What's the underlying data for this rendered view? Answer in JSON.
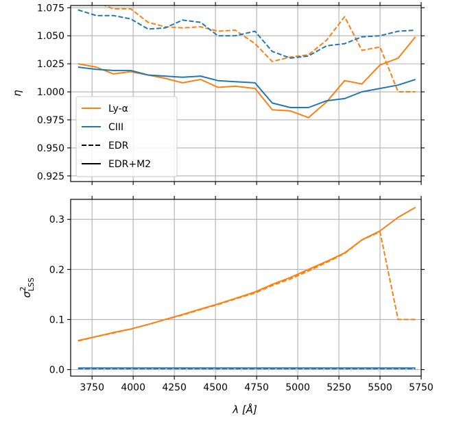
{
  "chart_data": [
    {
      "type": "line",
      "title": "",
      "xlabel": "",
      "ylabel": "η",
      "xlim": [
        3620,
        5750
      ],
      "ylim": [
        0.92,
        1.077
      ],
      "grid": true,
      "legend_position": "lower-left",
      "x_ticks": [
        3750,
        4000,
        4250,
        4500,
        4750,
        5000,
        5250,
        5500,
        5750
      ],
      "y_ticks": [
        0.925,
        0.95,
        0.975,
        1.0,
        1.025,
        1.05,
        1.075
      ],
      "y_tick_labels": [
        "0.925",
        "0.950",
        "0.975",
        "1.000",
        "1.025",
        "1.050",
        "1.075"
      ],
      "legend": [
        {
          "label": "Ly-α",
          "color": "#ff7f0e",
          "style": "solid"
        },
        {
          "label": "CIII",
          "color": "#1f77b4",
          "style": "solid"
        },
        {
          "label": "EDR",
          "color": "#000000",
          "style": "dashed"
        },
        {
          "label": "EDR+M2",
          "color": "#000000",
          "style": "solid"
        }
      ],
      "series": [
        {
          "color": "#ff7f0e",
          "style": "solid",
          "x": [
            3665,
            3775,
            3880,
            3985,
            4090,
            4195,
            4300,
            4410,
            4515,
            4620,
            4740,
            4845,
            4955,
            5065,
            5175,
            5285,
            5390,
            5500,
            5610,
            5715
          ],
          "y": [
            1.025,
            1.022,
            1.016,
            1.018,
            1.015,
            1.012,
            1.008,
            1.011,
            1.004,
            1.005,
            1.003,
            0.984,
            0.983,
            0.977,
            0.991,
            1.01,
            1.007,
            1.024,
            1.03,
            1.049
          ]
        },
        {
          "color": "#ff7f0e",
          "style": "dashed",
          "x": [
            3665,
            3775,
            3880,
            3985,
            4090,
            4195,
            4300,
            4410,
            4515,
            4620,
            4740,
            4845,
            4955,
            5065,
            5175,
            5285,
            5390,
            5500,
            5610,
            5715
          ],
          "y": [
            1.09,
            1.08,
            1.074,
            1.074,
            1.062,
            1.058,
            1.057,
            1.058,
            1.054,
            1.055,
            1.043,
            1.027,
            1.031,
            1.033,
            1.046,
            1.067,
            1.037,
            1.04,
            1.0,
            1.0
          ]
        },
        {
          "color": "#1f77b4",
          "style": "solid",
          "x": [
            3665,
            3775,
            3880,
            3985,
            4090,
            4195,
            4300,
            4410,
            4515,
            4620,
            4740,
            4845,
            4955,
            5065,
            5175,
            5285,
            5390,
            5500,
            5610,
            5715
          ],
          "y": [
            1.022,
            1.02,
            1.019,
            1.019,
            1.015,
            1.014,
            1.013,
            1.014,
            1.01,
            1.009,
            1.008,
            0.99,
            0.986,
            0.986,
            0.992,
            0.994,
            1.0,
            1.003,
            1.006,
            1.011
          ]
        },
        {
          "color": "#1f77b4",
          "style": "dashed",
          "x": [
            3665,
            3775,
            3880,
            3985,
            4090,
            4195,
            4300,
            4410,
            4515,
            4620,
            4740,
            4845,
            4955,
            5065,
            5175,
            5285,
            5390,
            5500,
            5610,
            5715
          ],
          "y": [
            1.073,
            1.068,
            1.068,
            1.065,
            1.056,
            1.057,
            1.064,
            1.062,
            1.05,
            1.05,
            1.054,
            1.036,
            1.03,
            1.032,
            1.041,
            1.043,
            1.049,
            1.05,
            1.054,
            1.055
          ]
        }
      ]
    },
    {
      "type": "line",
      "title": "",
      "xlabel": "λ [Å]",
      "ylabel": "σ²_LSS",
      "ylabel_main": "σ",
      "ylabel_sup": "2",
      "ylabel_sub": "LSS",
      "xlim": [
        3620,
        5750
      ],
      "ylim": [
        -0.013,
        0.34
      ],
      "grid": true,
      "x_ticks": [
        3750,
        4000,
        4250,
        4500,
        4750,
        5000,
        5250,
        5500,
        5750
      ],
      "x_tick_labels": [
        "3750",
        "4000",
        "4250",
        "4500",
        "4750",
        "5000",
        "5250",
        "5500",
        "5750"
      ],
      "y_ticks": [
        0.0,
        0.1,
        0.2,
        0.3
      ],
      "y_tick_labels": [
        "0.0",
        "0.1",
        "0.2",
        "0.3"
      ],
      "series": [
        {
          "color": "#ff7f0e",
          "style": "solid",
          "x": [
            3665,
            3775,
            3880,
            3985,
            4090,
            4195,
            4300,
            4410,
            4515,
            4620,
            4740,
            4845,
            4955,
            5065,
            5175,
            5285,
            5390,
            5500,
            5610,
            5715
          ],
          "y": [
            0.058,
            0.066,
            0.074,
            0.081,
            0.09,
            0.1,
            0.11,
            0.121,
            0.131,
            0.142,
            0.155,
            0.17,
            0.184,
            0.2,
            0.216,
            0.233,
            0.259,
            0.277,
            0.304,
            0.324
          ]
        },
        {
          "color": "#ff7f0e",
          "style": "dashed",
          "x": [
            3665,
            3775,
            3880,
            3985,
            4090,
            4195,
            4300,
            4410,
            4515,
            4620,
            4740,
            4845,
            4955,
            5065,
            5175,
            5285,
            5390,
            5500,
            5610,
            5715
          ],
          "y": [
            0.057,
            0.066,
            0.073,
            0.081,
            0.09,
            0.1,
            0.109,
            0.12,
            0.13,
            0.141,
            0.153,
            0.168,
            0.181,
            0.197,
            0.214,
            0.232,
            0.259,
            0.275,
            0.1,
            0.1
          ]
        },
        {
          "color": "#1f77b4",
          "style": "solid",
          "x": [
            3665,
            3775,
            3880,
            3985,
            4090,
            4195,
            4300,
            4410,
            4515,
            4620,
            4740,
            4845,
            4955,
            5065,
            5175,
            5285,
            5390,
            5500,
            5610,
            5715
          ],
          "y": [
            0.003,
            0.003,
            0.003,
            0.003,
            0.003,
            0.003,
            0.003,
            0.003,
            0.003,
            0.003,
            0.003,
            0.003,
            0.003,
            0.003,
            0.003,
            0.003,
            0.003,
            0.003,
            0.003,
            0.003
          ]
        },
        {
          "color": "#1f77b4",
          "style": "dashed",
          "x": [
            3665,
            3775,
            3880,
            3985,
            4090,
            4195,
            4300,
            4410,
            4515,
            4620,
            4740,
            4845,
            4955,
            5065,
            5175,
            5285,
            5390,
            5500,
            5610,
            5715
          ],
          "y": [
            0.002,
            0.002,
            0.002,
            0.002,
            0.002,
            0.002,
            0.002,
            0.002,
            0.002,
            0.002,
            0.002,
            0.002,
            0.002,
            0.002,
            0.002,
            0.002,
            0.002,
            0.002,
            0.002,
            0.002
          ]
        }
      ]
    }
  ]
}
